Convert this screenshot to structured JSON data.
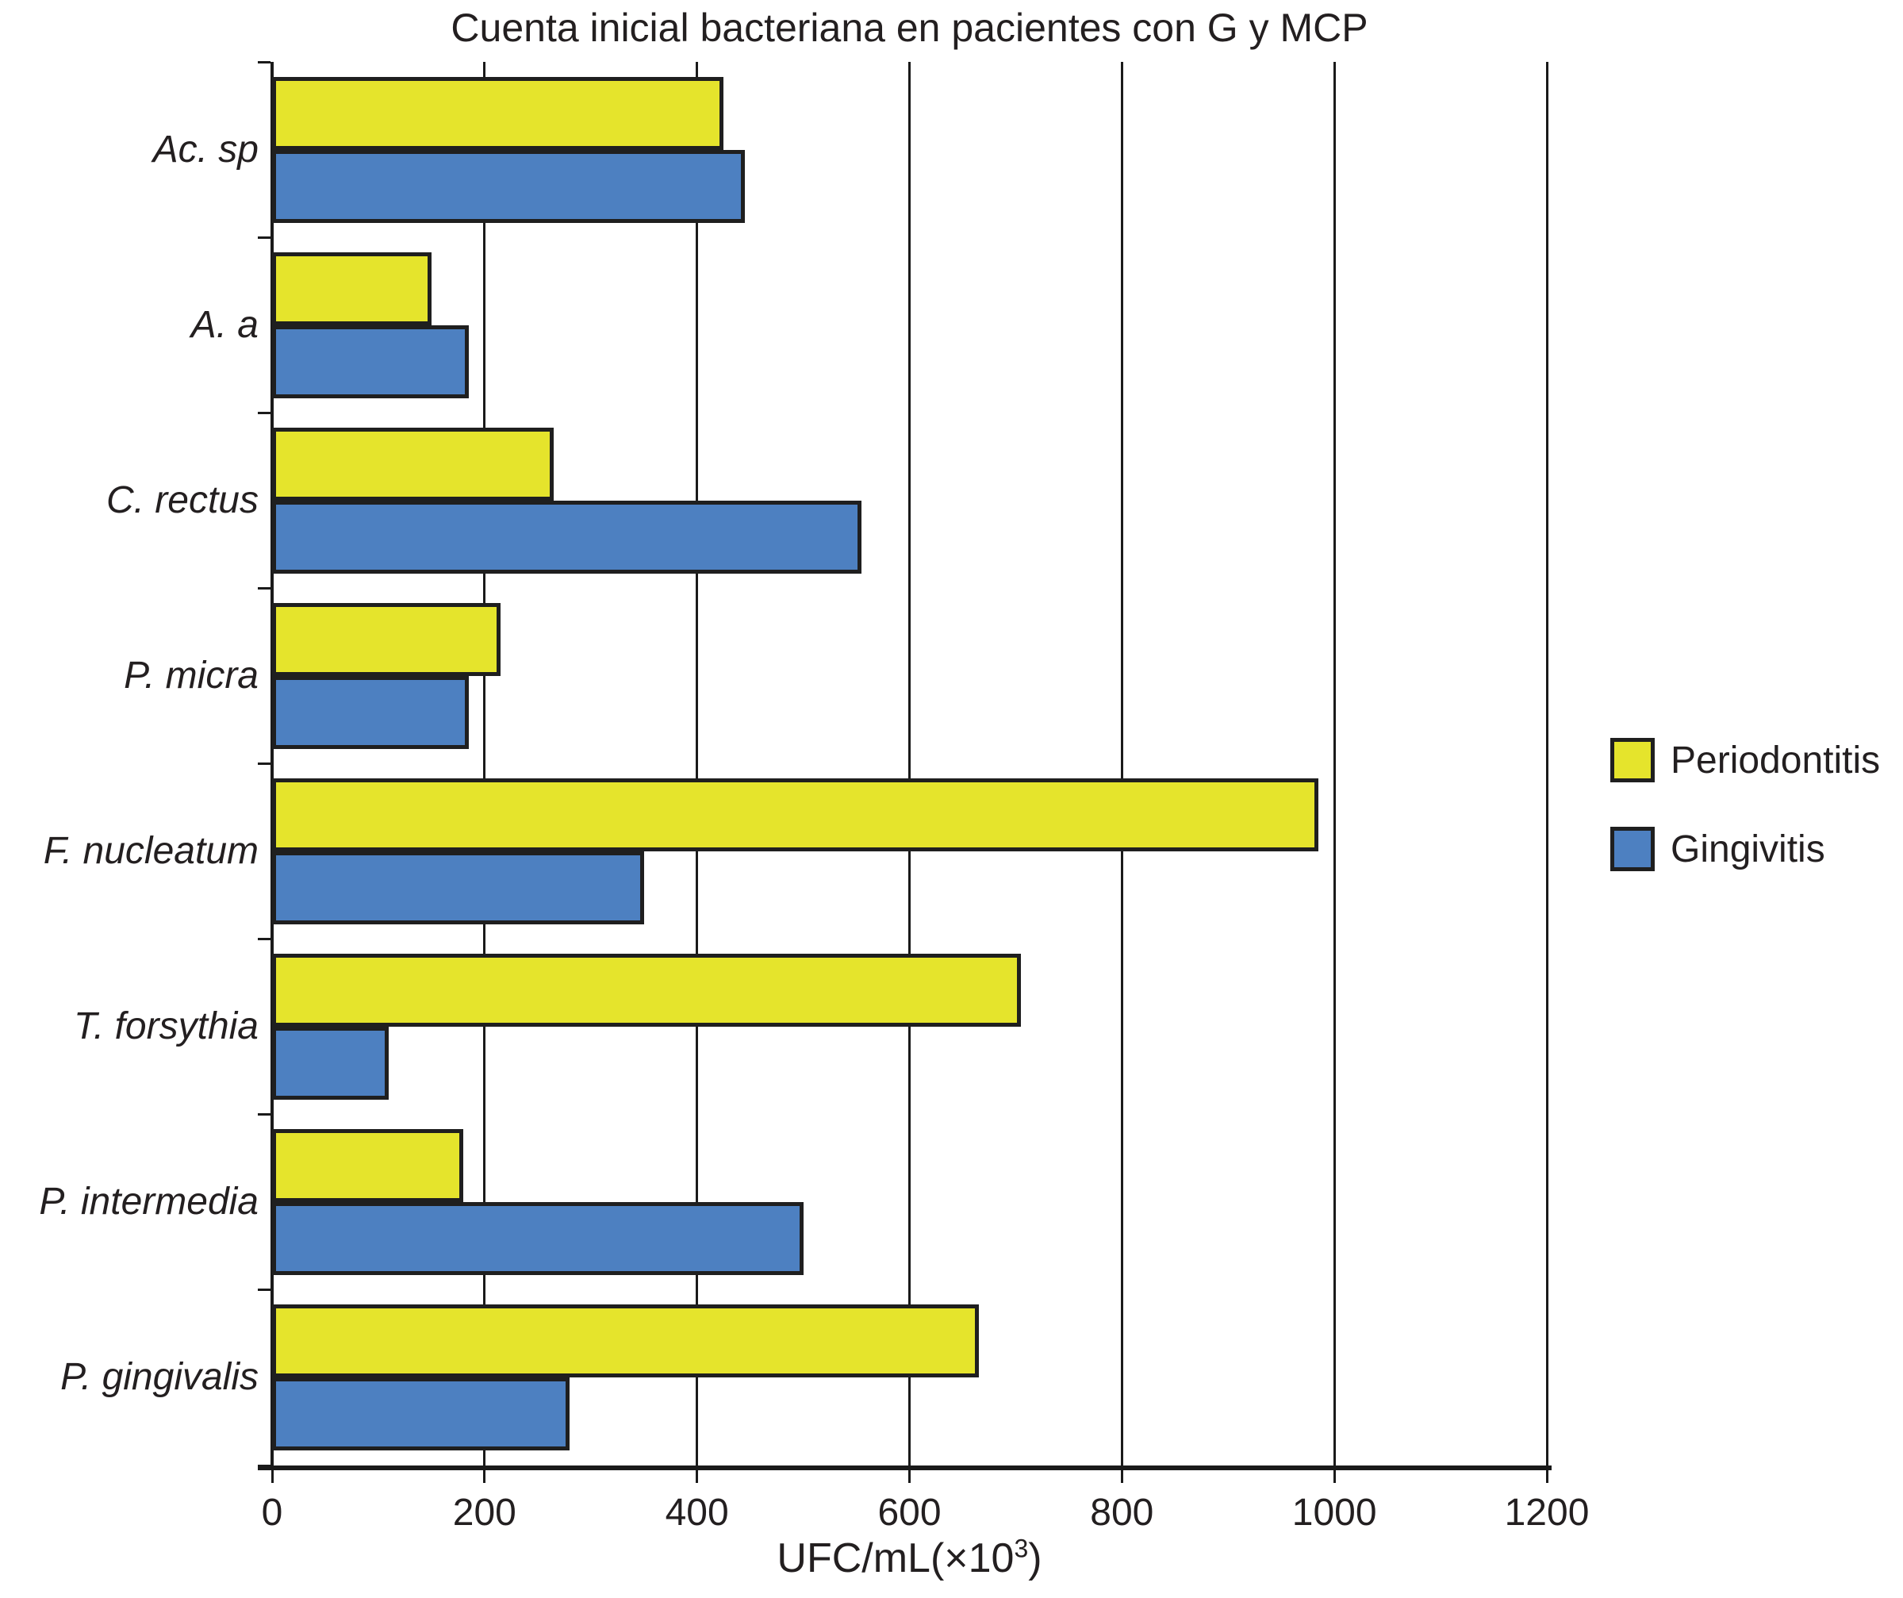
{
  "chart_data": {
    "type": "bar",
    "orientation": "horizontal",
    "title": "Cuenta inicial bacteriana en pacientes con G y MCP",
    "categories": [
      "Ac. sp",
      "A. a",
      "C. rectus",
      "P. micra",
      "F. nucleatum",
      "T. forsythia",
      "P. intermedia",
      "P. gingivalis"
    ],
    "series": [
      {
        "name": "Periodontitis",
        "color": "#e5e42c",
        "values": [
          425,
          150,
          265,
          215,
          985,
          705,
          180,
          665
        ]
      },
      {
        "name": "Gingivitis",
        "color": "#4d80c1",
        "values": [
          445,
          185,
          555,
          185,
          350,
          110,
          500,
          280
        ]
      }
    ],
    "xlabel": "UFC/mL(×10³)",
    "xlabel_parts": {
      "prefix": "UFC/mL(×10",
      "sup": "3",
      "suffix": ")"
    },
    "xlim": [
      0,
      1200
    ],
    "xticks": [
      0,
      200,
      400,
      600,
      800,
      1000,
      1200
    ],
    "grid": "vertical",
    "legend_position": "right",
    "bar_border_color": "#1f1f1f",
    "axis_color": "#1a1a1a",
    "text_color": "#231f20",
    "background_color": "#ffffff"
  },
  "legend": {
    "items": [
      {
        "label": "Periodontitis",
        "color": "#e5e42c"
      },
      {
        "label": "Gingivitis",
        "color": "#4d80c1"
      }
    ]
  }
}
